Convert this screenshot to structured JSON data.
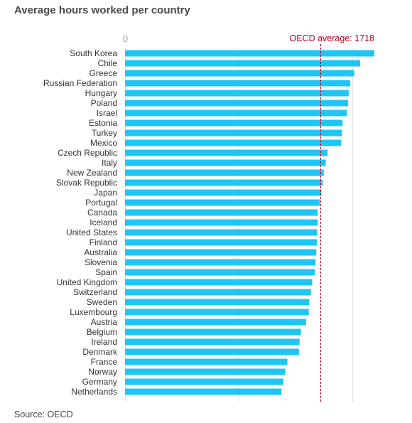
{
  "chart_data": {
    "type": "bar",
    "orientation": "horizontal",
    "title": "Average hours worked per country",
    "source": "Source: OECD",
    "xlim": [
      0,
      2200
    ],
    "x_ticks": [
      0,
      1000,
      2000
    ],
    "x_tick_labels": [
      "0",
      "",
      ""
    ],
    "grid": true,
    "bar_color": "#1fc6f4",
    "reference_line": {
      "label": "OECD average: 1718",
      "value": 1718,
      "color": "#b0001e"
    },
    "categories": [
      "South Korea",
      "Chile",
      "Greece",
      "Russian Federation",
      "Hungary",
      "Poland",
      "Israel",
      "Estonia",
      "Turkey",
      "Mexico",
      "Czech Republic",
      "Italy",
      "New Zealand",
      "Slovak Republic",
      "Japan",
      "Portugal",
      "Canada",
      "Iceland",
      "United States",
      "Finland",
      "Australia",
      "Slovenia",
      "Spain",
      "United Kingdom",
      "Switzerland",
      "Sweden",
      "Luxembourg",
      "Austria",
      "Belgium",
      "Ireland",
      "Denmark",
      "France",
      "Norway",
      "Germany",
      "Netherlands"
    ],
    "values": [
      2193,
      2068,
      2017,
      1982,
      1968,
      1963,
      1952,
      1914,
      1909,
      1902,
      1782,
      1766,
      1749,
      1739,
      1728,
      1714,
      1696,
      1695,
      1691,
      1689,
      1683,
      1676,
      1670,
      1647,
      1636,
      1621,
      1617,
      1593,
      1548,
      1536,
      1530,
      1428,
      1410,
      1393,
      1377
    ]
  }
}
